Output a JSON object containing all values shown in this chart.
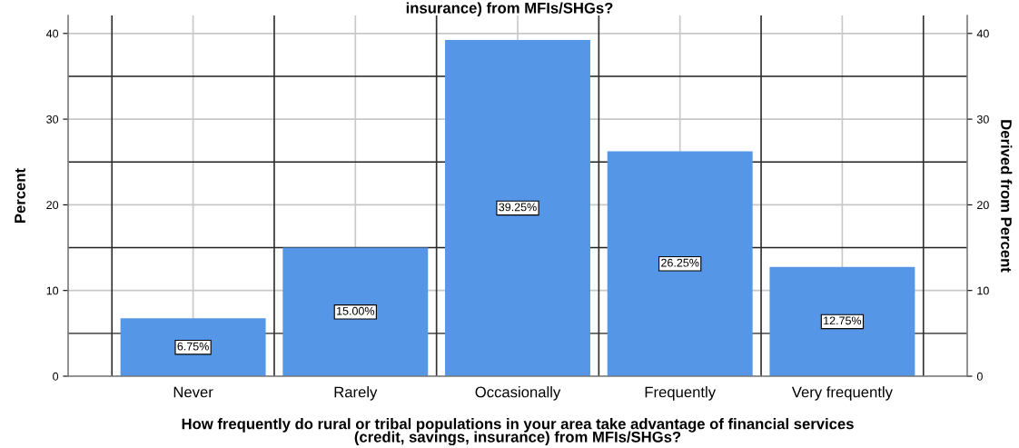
{
  "chart_data": {
    "type": "bar",
    "title": "insurance) from MFIs/SHGs?",
    "xlabel": "How frequently do rural or tribal populations in your area take advantage of financial services\n(credit, savings, insurance) from MFIs/SHGs?",
    "ylabel": "Percent",
    "y2label": "Derived from Percent",
    "categories": [
      "Never",
      "Rarely",
      "Occasionally",
      "Frequently",
      "Very frequently"
    ],
    "values": [
      6.75,
      15.0,
      39.25,
      26.25,
      12.75
    ],
    "value_labels": [
      "6.75%",
      "15.00%",
      "39.25%",
      "26.25%",
      "12.75%"
    ],
    "color": "#5596e6",
    "ylim": [
      0,
      42.1
    ],
    "yticks": [
      0,
      10,
      20,
      30,
      40
    ],
    "y2lim": [
      0,
      42.1
    ],
    "y2ticks": [
      0,
      10,
      20,
      30,
      40
    ],
    "grid": true
  }
}
